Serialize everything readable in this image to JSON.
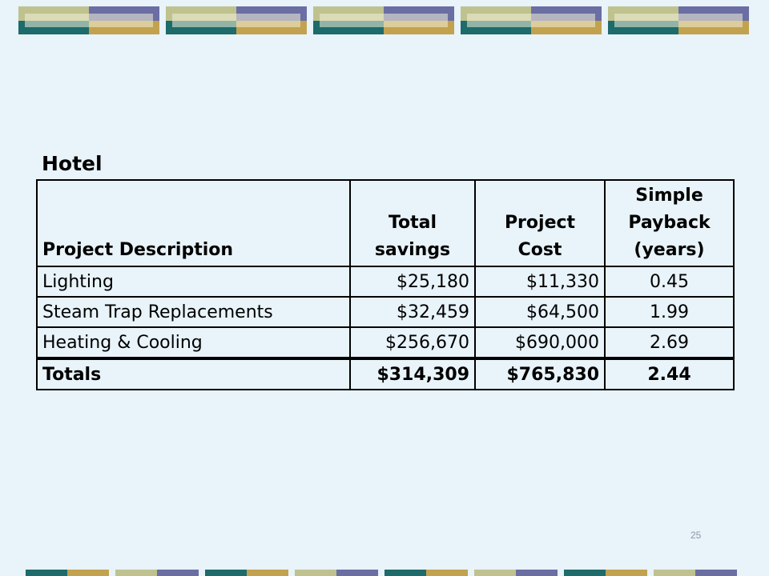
{
  "slide": {
    "title": "Hotel",
    "table": {
      "header": [
        [
          "Project Description"
        ],
        [
          "Total",
          "savings"
        ],
        [
          "Project",
          "Cost"
        ],
        [
          "Simple",
          "Payback",
          "(years)"
        ]
      ],
      "rows": [
        [
          "Lighting",
          "$25,180",
          "$11,330",
          "0.45"
        ],
        [
          "Steam Trap Replacements",
          "$32,459",
          "$64,500",
          "1.99"
        ],
        [
          "Heating & Cooling",
          "$256,670",
          "$690,000",
          "2.69"
        ]
      ],
      "totals": [
        "Totals",
        "$314,309",
        "$765,830",
        "2.44"
      ]
    },
    "page_number": "25"
  }
}
